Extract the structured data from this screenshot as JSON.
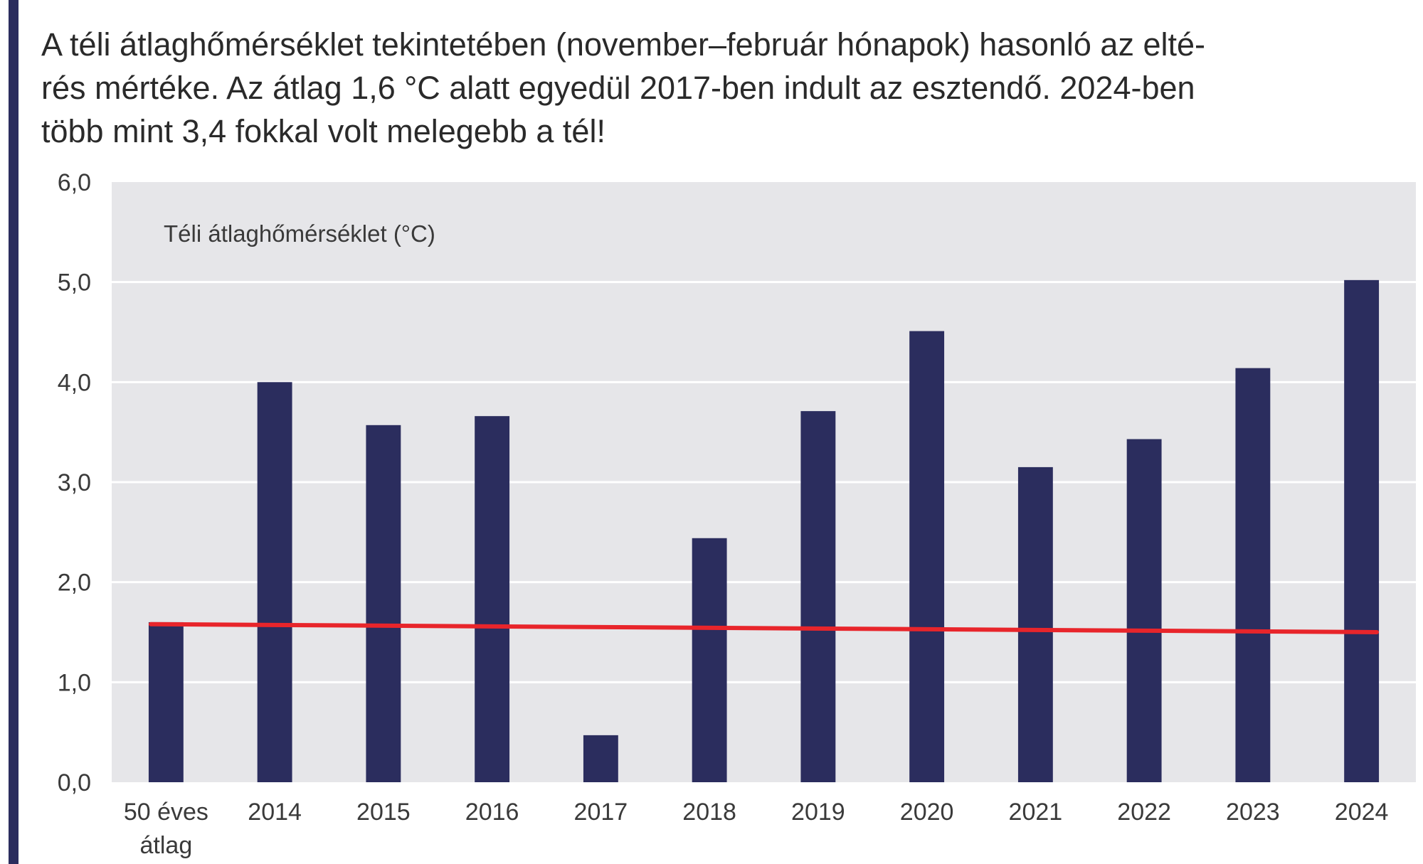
{
  "headline": {
    "lines": [
      "A téli átlaghőmérséklet tekintetében (november–február hónapok) hasonló az elté-",
      "rés mértéke. Az átlag 1,6 °C alatt egyedül 2017-ben indult az esztendő. 2024-ben",
      "több mint 3,4 fokkal volt melegebb a tél!"
    ]
  },
  "chart_data": {
    "type": "bar",
    "title": "",
    "ylabel": "Téli átlaghőmérséklet (°C)",
    "xlabel": "",
    "categories": [
      [
        "50 éves",
        "átlag"
      ],
      [
        "2014"
      ],
      [
        "2015"
      ],
      [
        "2016"
      ],
      [
        "2017"
      ],
      [
        "2018"
      ],
      [
        "2019"
      ],
      [
        "2020"
      ],
      [
        "2021"
      ],
      [
        "2022"
      ],
      [
        "2023"
      ],
      [
        "2024"
      ]
    ],
    "values": [
      1.6,
      4.0,
      3.57,
      3.66,
      0.47,
      2.44,
      3.71,
      4.51,
      3.15,
      3.43,
      4.14,
      5.02
    ],
    "ylim": [
      0,
      6
    ],
    "yticks": [
      "0,0",
      "1,0",
      "2,0",
      "3,0",
      "4,0",
      "5,0",
      "6,0"
    ],
    "grid": true,
    "legend": "none",
    "trend_line": {
      "start": 1.58,
      "end": 1.5,
      "color": "#e8252b"
    },
    "colors": {
      "bar": "#2b2d5e",
      "plot_bg": "#e6e6e9",
      "grid": "#ffffff",
      "accent_rule": "#2b2d5e"
    }
  }
}
